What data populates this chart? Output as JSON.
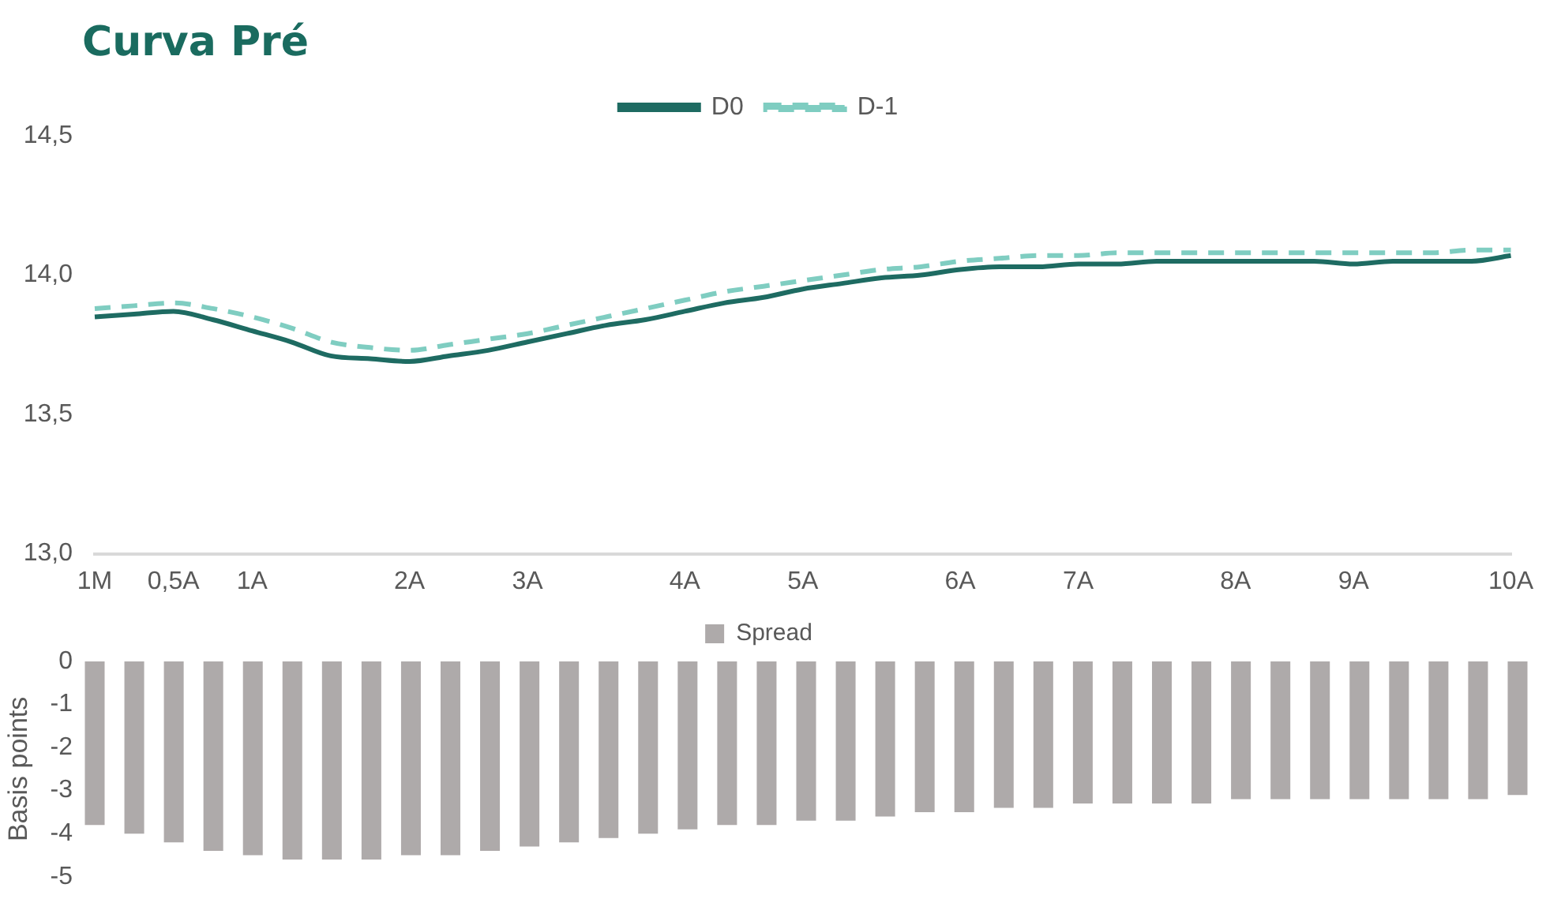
{
  "chart_data": [
    {
      "type": "line",
      "title": "Curva Pré",
      "legend": "top",
      "grid": false,
      "categories": [
        "1M",
        null,
        "0,5A",
        null,
        "1A",
        null,
        null,
        null,
        "2A",
        null,
        null,
        "3A",
        null,
        null,
        null,
        "4A",
        null,
        null,
        "5A",
        null,
        null,
        null,
        "6A",
        null,
        null,
        "7A",
        null,
        null,
        null,
        "8A",
        null,
        null,
        "9A",
        null,
        null,
        null,
        "10A"
      ],
      "ylim": [
        13,
        14.5
      ],
      "yticks": [
        {
          "value": 13,
          "label": "13,0"
        },
        {
          "value": 13.5,
          "label": "13,5"
        },
        {
          "value": 14,
          "label": "14,0"
        },
        {
          "value": 14.5,
          "label": "14,5"
        }
      ],
      "series": [
        {
          "name": "D0",
          "color": "#1e6b62",
          "line_style": "solid",
          "values": [
            13.85,
            13.86,
            13.87,
            13.84,
            13.8,
            13.76,
            13.71,
            13.7,
            13.69,
            13.71,
            13.73,
            13.76,
            13.79,
            13.82,
            13.84,
            13.87,
            13.9,
            13.92,
            13.95,
            13.97,
            13.99,
            14.0,
            14.02,
            14.03,
            14.03,
            14.04,
            14.04,
            14.05,
            14.05,
            14.05,
            14.05,
            14.05,
            14.04,
            14.05,
            14.05,
            14.05,
            14.07
          ]
        },
        {
          "name": "D-1",
          "color": "#7fcdc1",
          "line_style": "dashed",
          "values": [
            13.88,
            13.89,
            13.9,
            13.88,
            13.85,
            13.81,
            13.76,
            13.74,
            13.73,
            13.75,
            13.77,
            13.79,
            13.82,
            13.85,
            13.88,
            13.91,
            13.94,
            13.96,
            13.98,
            14.0,
            14.02,
            14.03,
            14.05,
            14.06,
            14.07,
            14.07,
            14.08,
            14.08,
            14.08,
            14.08,
            14.08,
            14.08,
            14.08,
            14.08,
            14.08,
            14.09,
            14.09
          ]
        }
      ]
    },
    {
      "type": "bar",
      "ylabel": "Basis points",
      "legend": "top",
      "grid": false,
      "tick_labels": "y",
      "categories": [
        null,
        null,
        null,
        null,
        null,
        null,
        null,
        null,
        null,
        null,
        null,
        null,
        null,
        null,
        null,
        null,
        null,
        null,
        null,
        null,
        null,
        null,
        null,
        null,
        null,
        null,
        null,
        null,
        null,
        null,
        null,
        null,
        null,
        null,
        null,
        null,
        null
      ],
      "ylim": [
        -5,
        0
      ],
      "yticks": [
        -5,
        -4,
        -3,
        -2,
        -1,
        0
      ],
      "series": [
        {
          "name": "Spread",
          "color": "#aeaaaa",
          "values": [
            -3.8,
            -4.0,
            -4.2,
            -4.4,
            -4.5,
            -4.6,
            -4.6,
            -4.6,
            -4.5,
            -4.5,
            -4.4,
            -4.3,
            -4.2,
            -4.1,
            -4.0,
            -3.9,
            -3.8,
            -3.8,
            -3.7,
            -3.7,
            -3.6,
            -3.5,
            -3.5,
            -3.4,
            -3.4,
            -3.3,
            -3.3,
            -3.3,
            -3.3,
            -3.2,
            -3.2,
            -3.2,
            -3.2,
            -3.2,
            -3.2,
            -3.2,
            -3.1
          ]
        }
      ]
    }
  ]
}
